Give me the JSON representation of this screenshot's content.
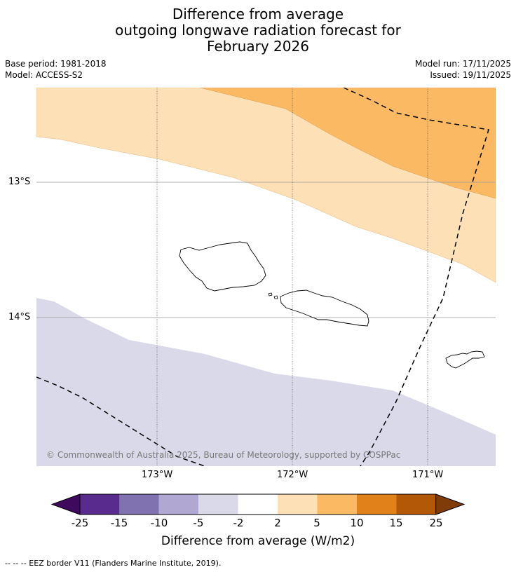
{
  "title": {
    "line1": "Difference from average",
    "line2": "outgoing longwave radiation forecast for",
    "line3": "February 2026"
  },
  "meta": {
    "base_period": "Base period: 1981-2018",
    "model": "Model: ACCESS-S2",
    "model_run": "Model run: 17/11/2025",
    "issued": "Issued: 19/11/2025"
  },
  "map": {
    "lat_labels": [
      "13°S",
      "14°S"
    ],
    "lon_labels": [
      "173°W",
      "172°W",
      "171°W"
    ],
    "copyright": "© Commonwealth of Australia 2025, Bureau of Meteorology, supported by COSPPac",
    "colors": {
      "band_2_5": "#fde0b6",
      "band_5_10": "#fcb964",
      "band_neg5_neg2": "#d9d9ea",
      "eez_line": "#000000"
    }
  },
  "colorbar": {
    "ticks": [
      "-25",
      "-15",
      "-10",
      "-5",
      "-2",
      "2",
      "5",
      "10",
      "15",
      "25"
    ],
    "colors": [
      "#3f0a5e",
      "#5a2b8e",
      "#8072b0",
      "#b0a8d2",
      "#d9d9ea",
      "#ffffff",
      "#fde0b6",
      "#fcb964",
      "#e08219",
      "#b35806",
      "#7f3b08"
    ],
    "title": "Difference from average (W/m2)"
  },
  "footnote": "--  --  -- EEZ border V11 (Flanders Marine Institute, 2019)."
}
